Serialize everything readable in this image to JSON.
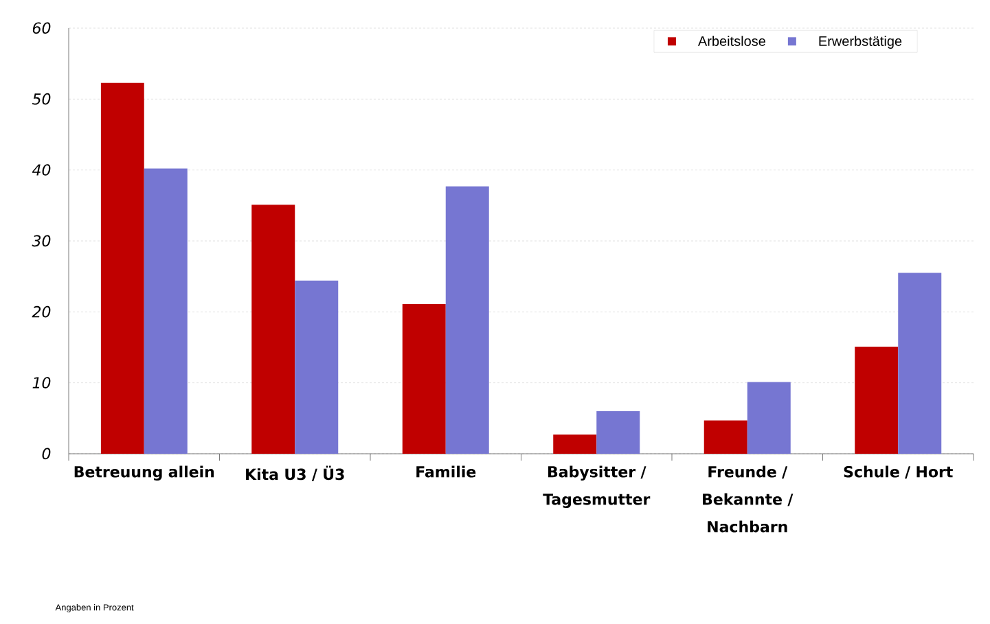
{
  "chart_data": {
    "type": "bar",
    "categories": [
      "Betreuung allein",
      "Kita U3 / Ü3",
      "Familie",
      "Babysitter / Tagesmutter",
      "Freunde / Bekannte / Nachbarn",
      "Schule / Hort"
    ],
    "series": [
      {
        "name": "Arbeitslose",
        "color": "#c00000",
        "values": [
          52.3,
          35.1,
          21.1,
          2.7,
          4.7,
          15.1
        ]
      },
      {
        "name": "Erwerbstätige",
        "color": "#7676d2",
        "values": [
          40.2,
          24.4,
          37.7,
          6.0,
          10.1,
          25.5
        ]
      }
    ],
    "ylim": [
      0,
      60
    ],
    "yticks": [
      0,
      10,
      20,
      30,
      40,
      50,
      60
    ],
    "grid": "y",
    "legend": "top right",
    "annotations": [
      "Angaben in Prozent"
    ]
  }
}
